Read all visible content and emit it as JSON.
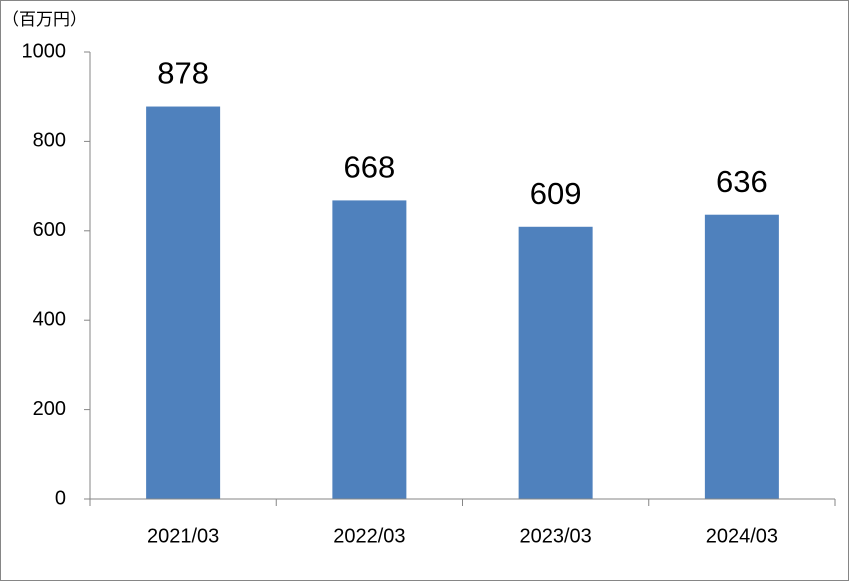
{
  "chart_data": {
    "type": "bar",
    "y_axis_label": "（百万円）",
    "categories": [
      "2021/03",
      "2022/03",
      "2023/03",
      "2024/03"
    ],
    "values": [
      878,
      668,
      609,
      636
    ],
    "color": "#4f81bd",
    "ylim": [
      0,
      1000
    ],
    "yticks": [
      0,
      200,
      400,
      600,
      800,
      1000
    ],
    "grid": false
  }
}
